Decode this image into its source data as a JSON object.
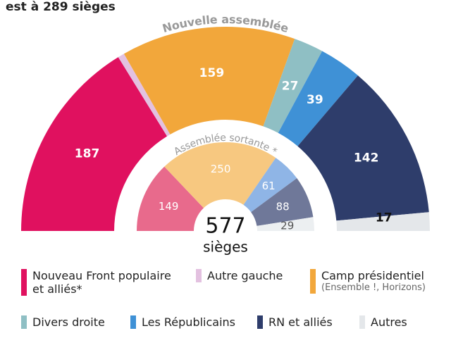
{
  "title": "est à 289 sièges",
  "center": {
    "total": 577,
    "unit": "sièges"
  },
  "chart_data": [
    {
      "type": "half-donut",
      "title": "Nouvelle assemblée",
      "categories": [
        "Nouveau Front populaire et alliés*",
        "Autre gauche",
        "Camp présidentiel",
        "Divers droite",
        "Les Républicains",
        "RN et alliés",
        "Autres"
      ],
      "values": [
        187,
        6,
        159,
        27,
        39,
        142,
        17
      ],
      "colors": [
        "#e0115f",
        "#e3c1e0",
        "#f2a73b",
        "#8fbfc4",
        "#3f91d6",
        "#2e3d6b",
        "#e4e7ea"
      ],
      "label_colors": [
        "#ffffff",
        "#111111",
        "#ffffff",
        "#ffffff",
        "#ffffff",
        "#ffffff",
        "#111111"
      ],
      "annotations": [
        {
          "category": 2,
          "text": "(Ensemble !, Horizons)"
        }
      ]
    },
    {
      "type": "half-donut",
      "title": "Assemblée sortante *",
      "values": [
        149,
        250,
        61,
        88,
        29
      ],
      "colors": [
        "#e86a8c",
        "#f7c880",
        "#8fb5e6",
        "#6f7899",
        "#eceff1"
      ],
      "label_colors": [
        "#ffffff",
        "#ffffff",
        "#ffffff",
        "#ffffff",
        "#555555"
      ]
    }
  ]
}
